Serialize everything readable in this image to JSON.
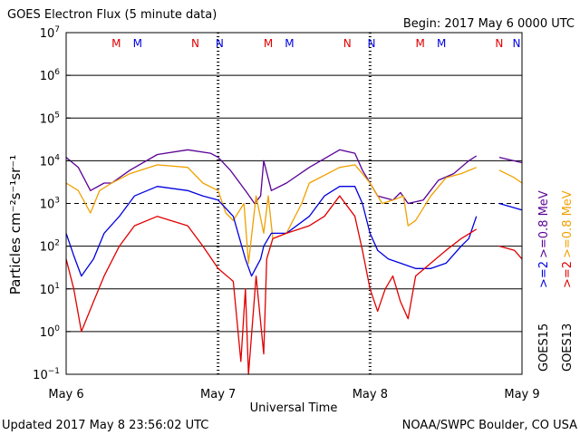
{
  "chart_data": {
    "type": "line",
    "title": "GOES Electron Flux (5 minute data)",
    "begin": "Begin: 2017 May 6 0000 UTC",
    "xlabel": "Universal Time",
    "ylabel": "Particles cm⁻²s⁻¹sr⁻¹",
    "x_unit": "days since 2017 May 6 0000 UTC",
    "xlim": [
      0,
      3
    ],
    "x_ticks": [
      {
        "value": 0,
        "label": "May 6"
      },
      {
        "value": 1,
        "label": "May 7"
      },
      {
        "value": 2,
        "label": "May 8"
      },
      {
        "value": 3,
        "label": "May 9"
      }
    ],
    "y_scale": "log",
    "ylim": [
      0.1,
      10000000
    ],
    "y_ticks": [
      {
        "value": 0.1,
        "base": "10",
        "exp": "−1"
      },
      {
        "value": 1,
        "base": "10",
        "exp": "0"
      },
      {
        "value": 10,
        "base": "10",
        "exp": "1"
      },
      {
        "value": 100,
        "base": "10",
        "exp": "2"
      },
      {
        "value": 1000,
        "base": "10",
        "exp": "3"
      },
      {
        "value": 10000,
        "base": "10",
        "exp": "4"
      },
      {
        "value": 100000,
        "base": "10",
        "exp": "5"
      },
      {
        "value": 1000000,
        "base": "10",
        "exp": "6"
      },
      {
        "value": 10000000,
        "base": "10",
        "exp": "7"
      }
    ],
    "threshold_line": 1000,
    "markers": [
      {
        "x": 0.33,
        "label": "M",
        "color": "#e00000"
      },
      {
        "x": 0.47,
        "label": "M",
        "color": "#0000e0"
      },
      {
        "x": 0.85,
        "label": "N",
        "color": "#e00000"
      },
      {
        "x": 1.01,
        "label": "N",
        "color": "#0000e0"
      },
      {
        "x": 1.33,
        "label": "M",
        "color": "#e00000"
      },
      {
        "x": 1.47,
        "label": "M",
        "color": "#0000e0"
      },
      {
        "x": 1.85,
        "label": "N",
        "color": "#e00000"
      },
      {
        "x": 2.01,
        "label": "N",
        "color": "#0000e0"
      },
      {
        "x": 2.33,
        "label": "M",
        "color": "#e00000"
      },
      {
        "x": 2.47,
        "label": "M",
        "color": "#0000e0"
      },
      {
        "x": 2.85,
        "label": "N",
        "color": "#e00000"
      },
      {
        "x": 3.01,
        "label": "N",
        "color": "#0000e0"
      }
    ],
    "series": [
      {
        "name": ">=0.8 MeV",
        "satellite": "GOES15",
        "color": "#5a0096",
        "x": [
          0,
          0.08,
          0.16,
          0.25,
          0.3,
          0.42,
          0.6,
          0.8,
          0.95,
          1.0,
          1.08,
          1.18,
          1.24,
          1.28,
          1.3,
          1.35,
          1.45,
          1.6,
          1.8,
          1.9,
          1.95,
          2.0,
          2.05,
          2.15,
          2.2,
          2.25,
          2.35,
          2.45,
          2.55,
          2.65,
          2.7,
          2.73,
          2.85,
          3.0
        ],
        "y": [
          12000,
          7000,
          2000,
          3000,
          3000,
          6000,
          14000,
          18000,
          15000,
          12000,
          6000,
          2000,
          1000,
          1500,
          10000,
          2000,
          3000,
          7000,
          18000,
          15000,
          6000,
          3000,
          1500,
          1200,
          1800,
          1000,
          1200,
          3500,
          5000,
          10000,
          13000,
          null,
          12000,
          9000
        ]
      },
      {
        "name": ">=0.8 MeV",
        "satellite": "GOES13",
        "color": "#f0a000",
        "x": [
          0,
          0.08,
          0.16,
          0.22,
          0.3,
          0.42,
          0.6,
          0.8,
          0.9,
          1.0,
          1.05,
          1.1,
          1.17,
          1.2,
          1.25,
          1.3,
          1.33,
          1.36,
          1.45,
          1.55,
          1.6,
          1.8,
          1.9,
          1.95,
          2.0,
          2.08,
          2.15,
          2.22,
          2.25,
          2.3,
          2.4,
          2.5,
          2.6,
          2.7,
          2.73,
          2.85,
          2.95,
          3.0
        ],
        "y": [
          3000,
          2000,
          600,
          2000,
          3000,
          5000,
          8000,
          7000,
          3000,
          2000,
          600,
          400,
          1000,
          40,
          1500,
          200,
          1500,
          150,
          200,
          1000,
          3000,
          7000,
          8000,
          5000,
          3000,
          1000,
          1200,
          1500,
          300,
          400,
          1500,
          4000,
          5000,
          7000,
          null,
          6000,
          4000,
          3000
        ]
      },
      {
        "name": ">=2 MeV",
        "satellite": "GOES15",
        "color": "#0000e0",
        "x": [
          0,
          0.05,
          0.1,
          0.18,
          0.25,
          0.35,
          0.45,
          0.6,
          0.8,
          0.9,
          1.0,
          1.1,
          1.18,
          1.22,
          1.28,
          1.3,
          1.35,
          1.45,
          1.6,
          1.7,
          1.8,
          1.9,
          1.95,
          2.0,
          2.05,
          2.12,
          2.2,
          2.3,
          2.4,
          2.5,
          2.6,
          2.65,
          2.7,
          2.73,
          2.85,
          3.0
        ],
        "y": [
          200,
          60,
          20,
          50,
          200,
          500,
          1500,
          2500,
          2000,
          1500,
          1200,
          500,
          50,
          20,
          50,
          100,
          200,
          200,
          500,
          1500,
          2500,
          2500,
          1000,
          200,
          80,
          50,
          40,
          30,
          30,
          40,
          100,
          150,
          500,
          null,
          1000,
          700
        ]
      },
      {
        "name": ">=2 MeV",
        "satellite": "GOES13",
        "color": "#e00000",
        "x": [
          0,
          0.05,
          0.1,
          0.18,
          0.25,
          0.35,
          0.45,
          0.6,
          0.8,
          0.9,
          1.0,
          1.1,
          1.15,
          1.18,
          1.2,
          1.25,
          1.3,
          1.32,
          1.36,
          1.45,
          1.6,
          1.7,
          1.8,
          1.9,
          1.95,
          2.0,
          2.05,
          2.1,
          2.15,
          2.2,
          2.25,
          2.3,
          2.4,
          2.5,
          2.6,
          2.7,
          2.73,
          2.85,
          2.95,
          3.0
        ],
        "y": [
          50,
          10,
          1,
          5,
          20,
          100,
          300,
          500,
          300,
          100,
          30,
          15,
          0.2,
          10,
          0.1,
          20,
          0.3,
          50,
          150,
          200,
          300,
          500,
          1500,
          500,
          80,
          10,
          3,
          10,
          20,
          5,
          2,
          20,
          40,
          80,
          150,
          250,
          null,
          100,
          80,
          50
        ]
      }
    ]
  },
  "right_labels": {
    "goes15": "GOES15",
    "goes13": "GOES13",
    "g15_lo": ">=2",
    "g15_hi": ">=0.8 MeV",
    "g13_lo": ">=2",
    "g13_hi": ">=0.8 MeV"
  },
  "footer": {
    "updated": "Updated 2017 May  8 23:56:02 UTC",
    "source": "NOAA/SWPC Boulder, CO USA"
  }
}
